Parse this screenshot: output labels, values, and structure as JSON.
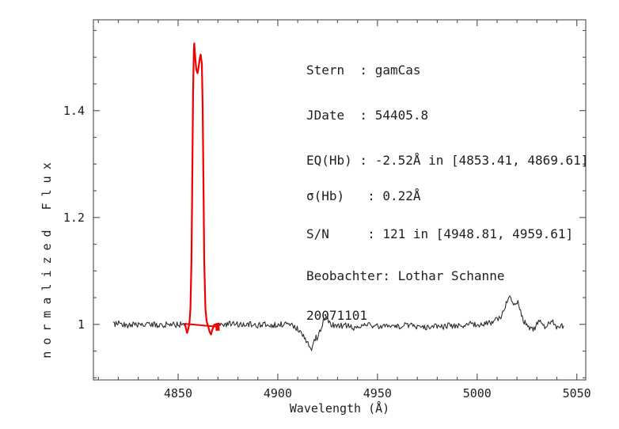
{
  "chart_data": {
    "type": "line",
    "title": "",
    "xlabel": "Wavelength (Å)",
    "ylabel": "normalized Flux",
    "xlim": [
      4807.5,
      5054.5
    ],
    "ylim": [
      0.896,
      1.57
    ],
    "grid": false,
    "x_ticks": {
      "major": [
        4850,
        4900,
        4950,
        5000,
        5050
      ],
      "labels": [
        "4850",
        "4900",
        "4950",
        "5000",
        "5050"
      ],
      "minor_step": 10
    },
    "y_ticks": {
      "major": [
        1.0,
        1.2,
        1.4
      ],
      "labels": [
        "1",
        "1.2",
        "1.4"
      ],
      "minor_step": 0.05
    },
    "colors": {
      "spectrum": "#2e2e2e",
      "hbeta": "#f20000",
      "frame": "#5a5a5a",
      "text": "#1e1e1e",
      "background": "#ffffff"
    },
    "series": [
      {
        "name": "observed-spectrum",
        "color_key": "spectrum",
        "x_start": 4817.5,
        "x_end": 5043.5,
        "step": 0.45,
        "gap": [
          4853.41,
          4869.61
        ],
        "noise_amplitude": 0.0055,
        "seed": 20071101,
        "envelope": [
          [
            4817.5,
            1.0
          ],
          [
            4821,
            1.003
          ],
          [
            4824,
            0.998
          ],
          [
            4828,
            1.001
          ],
          [
            4832,
            0.998
          ],
          [
            4836,
            1.001
          ],
          [
            4840,
            0.998
          ],
          [
            4844,
            1.0
          ],
          [
            4848,
            0.999
          ],
          [
            4851,
            1.0
          ],
          [
            4853.4,
            1.0
          ],
          [
            4869.6,
            1.0
          ],
          [
            4873,
            0.999
          ],
          [
            4877,
            1.001
          ],
          [
            4881,
            0.999
          ],
          [
            4885,
            1.001
          ],
          [
            4889,
            0.998
          ],
          [
            4893,
            1.0
          ],
          [
            4897,
            0.998
          ],
          [
            4901,
            1.0
          ],
          [
            4905,
            1.0
          ],
          [
            4908,
            0.997
          ],
          [
            4910,
            0.991
          ],
          [
            4912,
            0.984
          ],
          [
            4914,
            0.973
          ],
          [
            4915.5,
            0.961
          ],
          [
            4916.7,
            0.954
          ],
          [
            4918,
            0.963
          ],
          [
            4919,
            0.976
          ],
          [
            4920,
            0.972
          ],
          [
            4921,
            0.986
          ],
          [
            4922.5,
            1.001
          ],
          [
            4924.2,
            1.018
          ],
          [
            4925.5,
            1.008
          ],
          [
            4927,
            0.999
          ],
          [
            4930,
            0.996
          ],
          [
            4934,
            0.998
          ],
          [
            4938,
            0.994
          ],
          [
            4942,
            0.997
          ],
          [
            4946,
            0.999
          ],
          [
            4950,
            0.996
          ],
          [
            4954,
            0.998
          ],
          [
            4958,
            0.995
          ],
          [
            4962,
            0.997
          ],
          [
            4966,
            0.999
          ],
          [
            4970,
            0.996
          ],
          [
            4974,
            0.994
          ],
          [
            4978,
            0.997
          ],
          [
            4982,
            0.995
          ],
          [
            4986,
            0.998
          ],
          [
            4990,
            0.996
          ],
          [
            4994,
            0.999
          ],
          [
            4998,
            1.001
          ],
          [
            5002,
            0.999
          ],
          [
            5006,
            1.003
          ],
          [
            5009,
            1.006
          ],
          [
            5012,
            1.015
          ],
          [
            5014,
            1.032
          ],
          [
            5015.8,
            1.052
          ],
          [
            5016.5,
            1.056
          ],
          [
            5017.3,
            1.042
          ],
          [
            5018.3,
            1.034
          ],
          [
            5019.6,
            1.041
          ],
          [
            5020.5,
            1.044
          ],
          [
            5021.8,
            1.022
          ],
          [
            5023.2,
            1.008
          ],
          [
            5025,
            0.998
          ],
          [
            5027,
            0.993
          ],
          [
            5028.5,
            0.99
          ],
          [
            5030,
            1.0
          ],
          [
            5031.5,
            1.006
          ],
          [
            5033,
            0.998
          ],
          [
            5034.5,
            0.993
          ],
          [
            5036,
            1.002
          ],
          [
            5037.5,
            1.006
          ],
          [
            5039,
            0.999
          ],
          [
            5040.5,
            0.994
          ],
          [
            5042,
            0.999
          ],
          [
            5043.5,
            0.995
          ]
        ]
      },
      {
        "name": "hbeta-emission-profile",
        "color_key": "hbeta",
        "points": [
          [
            4853.41,
            1.001
          ],
          [
            4853.9,
            0.993
          ],
          [
            4854.5,
            0.984
          ],
          [
            4855.1,
            0.992
          ],
          [
            4855.7,
            1.004
          ],
          [
            4856.2,
            1.03
          ],
          [
            4856.7,
            1.12
          ],
          [
            4857.1,
            1.27
          ],
          [
            4857.5,
            1.43
          ],
          [
            4857.9,
            1.516
          ],
          [
            4858.1,
            1.526
          ],
          [
            4858.5,
            1.504
          ],
          [
            4859.1,
            1.478
          ],
          [
            4859.7,
            1.47
          ],
          [
            4860.3,
            1.482
          ],
          [
            4860.9,
            1.499
          ],
          [
            4861.3,
            1.505
          ],
          [
            4861.9,
            1.488
          ],
          [
            4862.3,
            1.41
          ],
          [
            4862.7,
            1.27
          ],
          [
            4863.1,
            1.12
          ],
          [
            4863.7,
            1.03
          ],
          [
            4864.3,
            1.006
          ],
          [
            4865.1,
            0.996
          ],
          [
            4865.9,
            0.985
          ],
          [
            4866.5,
            0.981
          ],
          [
            4867.2,
            0.99
          ],
          [
            4868.0,
            0.999
          ],
          [
            4868.8,
            1.0
          ],
          [
            4869.61,
            1.001
          ]
        ]
      },
      {
        "name": "continuum-integration-segment",
        "color_key": "hbeta",
        "points": [
          [
            4853.41,
            1.001
          ],
          [
            4869.61,
            0.9955
          ]
        ],
        "end_marker": true
      }
    ],
    "annotations": [
      {
        "label": "star",
        "text": "Stern  : gamCas"
      },
      {
        "label": "julian-date",
        "text": "JDate  : 54405.8"
      },
      {
        "label": "equivalent-width",
        "text": "EQ(Hb) : -2.52Å in [4853.41, 4869.61]"
      },
      {
        "label": "sigma",
        "text": "σ(Hb)   : 0.22Å"
      },
      {
        "label": "signal-to-noise",
        "text": "S/N     : 121 in [4948.81, 4959.61]"
      },
      {
        "label": "observer",
        "text": "Beobachter: Lothar Schanne"
      },
      {
        "label": "observation-date",
        "text": "20071101"
      }
    ]
  }
}
